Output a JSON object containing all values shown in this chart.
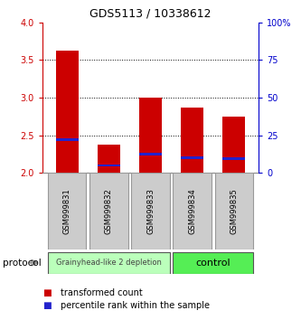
{
  "title": "GDS5113 / 10338612",
  "samples": [
    "GSM999831",
    "GSM999832",
    "GSM999833",
    "GSM999834",
    "GSM999835"
  ],
  "transformed_counts": [
    3.62,
    2.37,
    3.0,
    2.87,
    2.75
  ],
  "percentile_ranks": [
    2.44,
    2.1,
    2.25,
    2.2,
    2.19
  ],
  "bar_bottom": 2.0,
  "ylim": [
    2.0,
    4.0
  ],
  "yticks_left": [
    2.0,
    2.5,
    3.0,
    3.5,
    4.0
  ],
  "yticks_right": [
    0,
    25,
    50,
    75,
    100
  ],
  "ylabel_left_color": "#cc0000",
  "ylabel_right_color": "#0000cc",
  "bar_color_red": "#cc0000",
  "bar_color_blue": "#2222cc",
  "group1_samples": [
    0,
    1,
    2
  ],
  "group2_samples": [
    3,
    4
  ],
  "group1_label": "Grainyhead-like 2 depletion",
  "group2_label": "control",
  "group1_color": "#bbffbb",
  "group2_color": "#55ee55",
  "protocol_label": "protocol",
  "legend_red": "transformed count",
  "legend_blue": "percentile rank within the sample",
  "bar_width": 0.55,
  "xlabel_box_color": "#cccccc",
  "xlabel_box_border": "#999999",
  "title_fontsize": 9,
  "tick_fontsize": 7,
  "sample_fontsize": 6,
  "legend_fontsize": 7,
  "group_label_fontsize1": 6,
  "group_label_fontsize2": 8
}
